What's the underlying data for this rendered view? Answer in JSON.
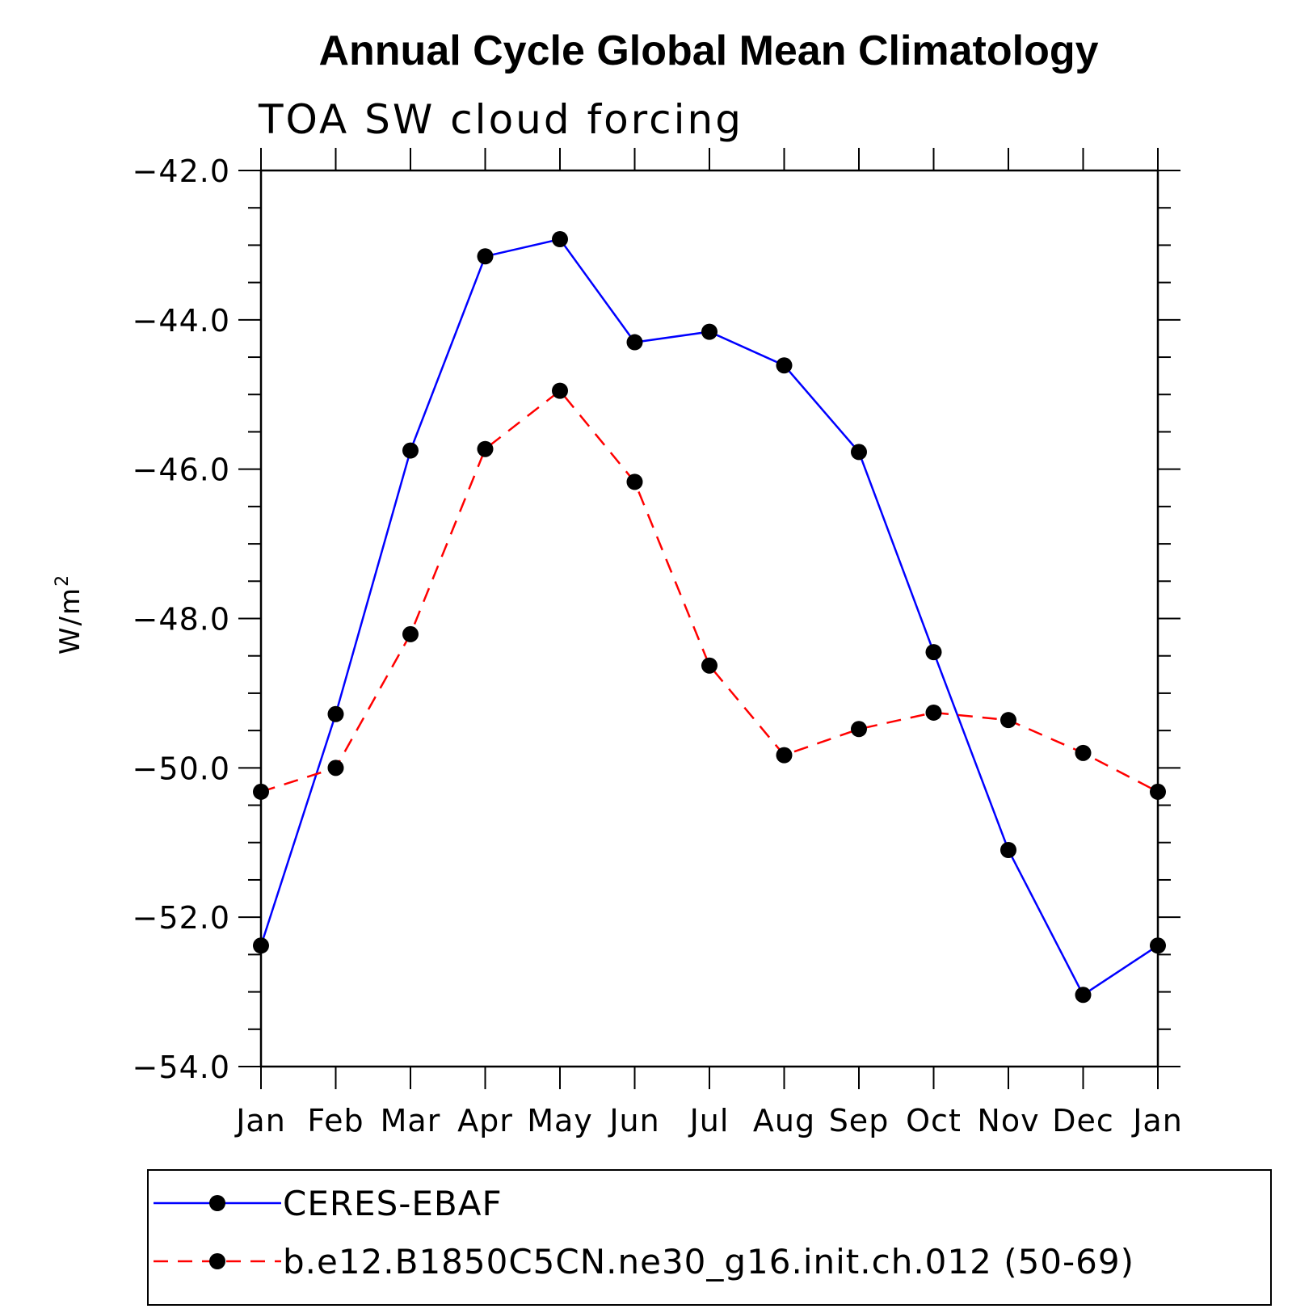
{
  "chart_data": {
    "type": "line",
    "title": "Annual Cycle Global Mean Climatology",
    "subtitle": "TOA SW cloud forcing",
    "ylabel_base": "W/m",
    "ylabel_sup": "2",
    "xlabel": "",
    "categories": [
      "Jan",
      "Feb",
      "Mar",
      "Apr",
      "May",
      "Jun",
      "Jul",
      "Aug",
      "Sep",
      "Oct",
      "Nov",
      "Dec",
      "Jan"
    ],
    "ylim": [
      -54.0,
      -42.0
    ],
    "yticks": [
      "-42.0",
      "-44.0",
      "-46.0",
      "-48.0",
      "-50.0",
      "-52.0",
      "-54.0"
    ],
    "series": [
      {
        "name": "CERES-EBAF",
        "color": "#0000ff",
        "dash": "solid",
        "values": [
          -52.38,
          -49.28,
          -45.75,
          -43.15,
          -42.92,
          -44.3,
          -44.16,
          -44.61,
          -45.77,
          -48.45,
          -51.1,
          -53.04,
          -52.38
        ]
      },
      {
        "name": "b.e12.B1850C5CN.ne30_g16.init.ch.012 (50-69)",
        "color": "#ff0000",
        "dash": "dashed",
        "values": [
          -50.32,
          -50.0,
          -48.21,
          -45.73,
          -44.95,
          -46.17,
          -48.63,
          -49.83,
          -49.48,
          -49.26,
          -49.36,
          -49.8,
          -50.32
        ]
      }
    ],
    "legend_position": "bottom"
  }
}
